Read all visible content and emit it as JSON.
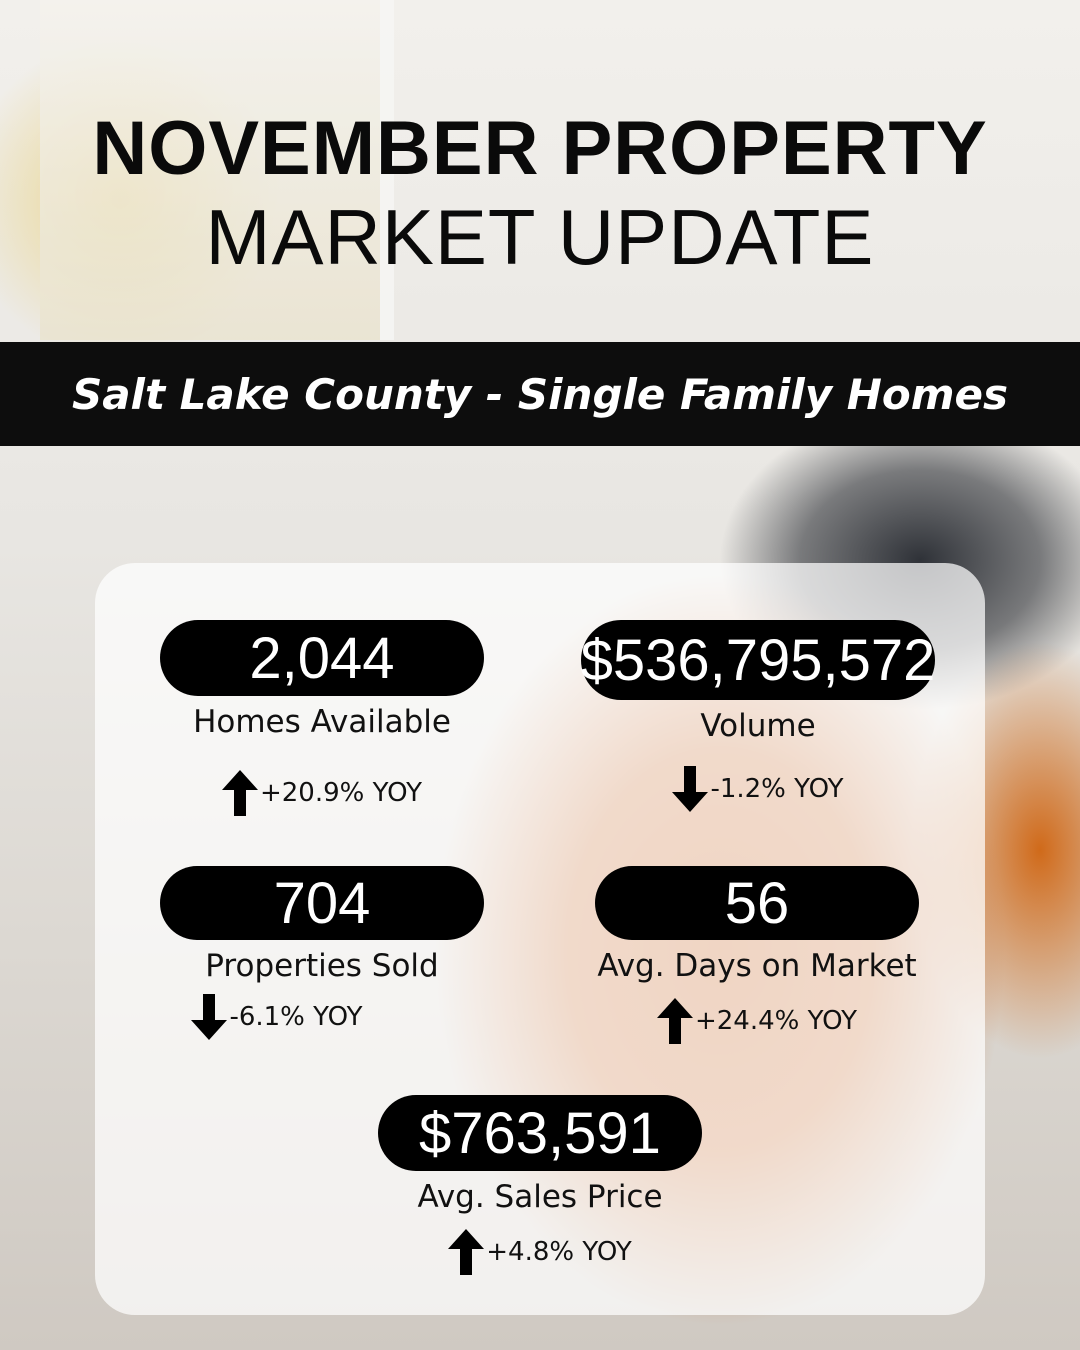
{
  "header": {
    "title_line1": "NOVEMBER PROPERTY",
    "title_line2": "MARKET UPDATE"
  },
  "subtitle": "Salt Lake County - Single Family Homes",
  "stats": [
    {
      "value": "2,044",
      "label": "Homes Available",
      "change": "+20.9% YOY",
      "direction": "up"
    },
    {
      "value": "$536,795,572",
      "label": "Volume",
      "change": "-1.2% YOY",
      "direction": "down"
    },
    {
      "value": "704",
      "label": "Properties Sold",
      "change": "-6.1% YOY",
      "direction": "down"
    },
    {
      "value": "56",
      "label": "Avg. Days on Market",
      "change": "+24.4% YOY",
      "direction": "up"
    },
    {
      "value": "$763,591",
      "label": "Avg. Sales Price",
      "change": "+4.8% YOY",
      "direction": "up"
    }
  ],
  "colors": {
    "pill": "#000000",
    "band": "#0d0d0d",
    "text": "#111111"
  }
}
